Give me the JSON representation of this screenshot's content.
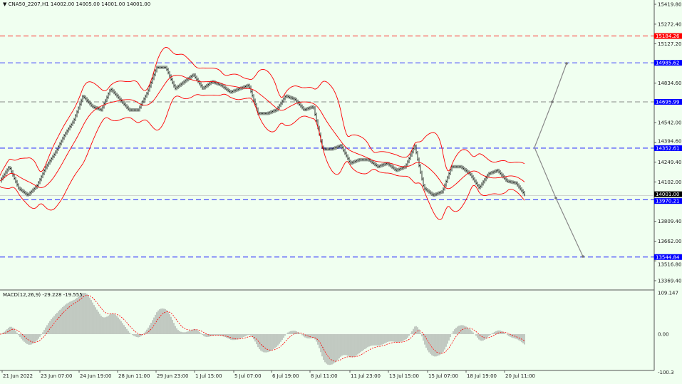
{
  "header": {
    "symbol_line": "CNA50_2207,H1  14002.00 14005.00 14001.00 14001.00"
  },
  "macd": {
    "label": "MACD(12,26,9) -29.228 -19.555"
  },
  "colors": {
    "background": "#f0fff0",
    "bands": "#ff0000",
    "blue_level": "#0000ff",
    "red_level": "#ff0000",
    "signal": "#ff0000",
    "bars": "#000000",
    "arrows": "#808080"
  },
  "chart_data": {
    "type": "bar",
    "subtype": "ohlc-price-chart",
    "price_axis": {
      "range": [
        13369.4,
        15419.8
      ],
      "ticks": [
        "15419.80",
        "15272.40",
        "15127.20",
        "14834.60",
        "14542.00",
        "14394.60",
        "14249.40",
        "14102.00",
        "13809.40",
        "13662.00",
        "13516.80",
        "13369.40"
      ]
    },
    "macd_axis": {
      "range": [
        -100.3,
        109.147
      ],
      "ticks": [
        "109.147",
        "0.00",
        "-100.3"
      ]
    },
    "time_ticks": [
      "21 Jun 2022",
      "23 Jun 07:00",
      "24 Jun 19:00",
      "28 Jun 11:00",
      "29 Jun 23:00",
      "1 Jul 15:00",
      "5 Jul 07:00",
      "6 Jul 19:00",
      "8 Jul 11:00",
      "11 Jul 23:00",
      "13 Jul 15:00",
      "15 Jul 07:00",
      "18 Jul 19:00",
      "20 Jul 11:00"
    ],
    "closes": [
      14109,
      14215,
      14057,
      14004,
      14072,
      14215,
      14320,
      14451,
      14557,
      14741,
      14662,
      14636,
      14794,
      14715,
      14636,
      14636,
      14767,
      14952,
      14952,
      14794,
      14846,
      14899,
      14794,
      14846,
      14820,
      14767,
      14794,
      14820,
      14610,
      14610,
      14636,
      14741,
      14715,
      14636,
      14662,
      14346,
      14346,
      14372,
      14241,
      14267,
      14267,
      14215,
      14241,
      14188,
      14215,
      14372,
      14057,
      14004,
      14030,
      14215,
      14215,
      14162,
      14057,
      14162,
      14188,
      14109,
      14093,
      14001
    ],
    "levels": [
      {
        "label": "15184.26",
        "value": 15184.26,
        "color": "#ff0000",
        "style": "dashed"
      },
      {
        "label": "14985.62",
        "value": 14985.62,
        "color": "#0000ff",
        "style": "dashed"
      },
      {
        "label": "14695.99",
        "value": 14695.99,
        "color": "#0000ff",
        "style": "dashed"
      },
      {
        "label": "14352.61",
        "value": 14352.61,
        "color": "#0000ff",
        "style": "dashed"
      },
      {
        "label": "13970.21",
        "value": 13970.21,
        "color": "#0000ff",
        "style": "dashed"
      },
      {
        "label": "13544.84",
        "value": 13544.84,
        "color": "#0000ff",
        "style": "dashed"
      }
    ],
    "current_price": {
      "label": "14001.00",
      "value": 14001.0
    },
    "indicators": [
      "Bollinger Bands",
      "MACD(12,26,9)"
    ]
  }
}
